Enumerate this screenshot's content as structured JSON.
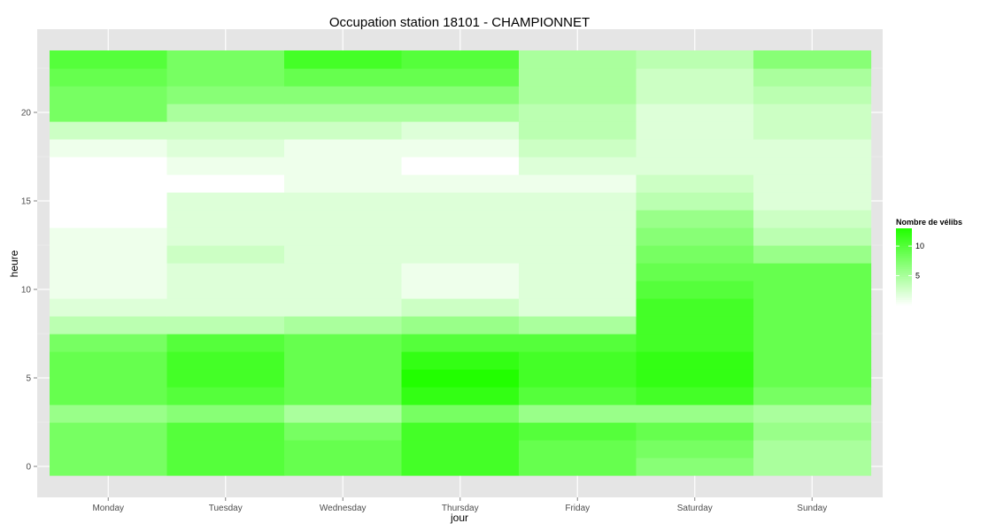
{
  "chart_data": {
    "type": "heatmap",
    "title": "Occupation station 18101 - CHAMPIONNET",
    "xlabel": "jour",
    "ylabel": "heure",
    "x": [
      "Monday",
      "Tuesday",
      "Wednesday",
      "Thursday",
      "Friday",
      "Saturday",
      "Sunday"
    ],
    "y": [
      0,
      1,
      2,
      3,
      4,
      5,
      6,
      7,
      8,
      9,
      10,
      11,
      12,
      13,
      14,
      15,
      16,
      17,
      18,
      19,
      20,
      21,
      22,
      23
    ],
    "y_ticks": [
      0,
      5,
      10,
      15,
      20
    ],
    "ylim": [
      -0.5,
      23.5
    ],
    "grid": true,
    "legend": {
      "title": "Nombre de vélibs",
      "ticks": [
        5,
        10
      ],
      "range": [
        0,
        13
      ],
      "position": "right",
      "low_color": "#ffffff",
      "high_color": "#22ff00"
    },
    "values": [
      [
        8,
        10,
        9,
        11,
        9,
        7,
        5
      ],
      [
        8,
        10,
        9,
        11,
        9,
        8,
        5
      ],
      [
        8,
        10,
        8,
        11,
        10,
        9,
        6
      ],
      [
        6,
        7,
        5,
        8,
        6,
        6,
        5
      ],
      [
        9,
        10,
        9,
        12,
        10,
        11,
        8
      ],
      [
        9,
        11,
        9,
        13,
        11,
        12,
        9
      ],
      [
        9,
        11,
        9,
        12,
        11,
        12,
        9
      ],
      [
        8,
        10,
        9,
        10,
        10,
        11,
        9
      ],
      [
        4,
        4,
        5,
        6,
        5,
        11,
        9
      ],
      [
        2,
        2,
        2,
        3,
        2,
        11,
        9
      ],
      [
        1,
        2,
        2,
        1,
        2,
        10,
        9
      ],
      [
        1,
        2,
        2,
        1,
        2,
        9,
        9
      ],
      [
        1,
        3,
        2,
        2,
        2,
        8,
        6
      ],
      [
        1,
        2,
        2,
        2,
        2,
        7,
        4
      ],
      [
        0,
        2,
        2,
        2,
        2,
        6,
        3
      ],
      [
        0,
        2,
        2,
        2,
        2,
        4,
        2
      ],
      [
        0,
        0,
        1,
        1,
        1,
        3,
        2
      ],
      [
        0,
        1,
        1,
        0,
        2,
        2,
        2
      ],
      [
        1,
        2,
        1,
        1,
        3,
        2,
        2
      ],
      [
        3,
        3,
        3,
        2,
        4,
        2,
        3
      ],
      [
        8,
        5,
        5,
        5,
        4,
        2,
        3
      ],
      [
        8,
        7,
        7,
        7,
        5,
        3,
        4
      ],
      [
        9,
        8,
        9,
        9,
        5,
        3,
        5
      ],
      [
        10,
        8,
        11,
        10,
        5,
        4,
        7
      ]
    ]
  }
}
